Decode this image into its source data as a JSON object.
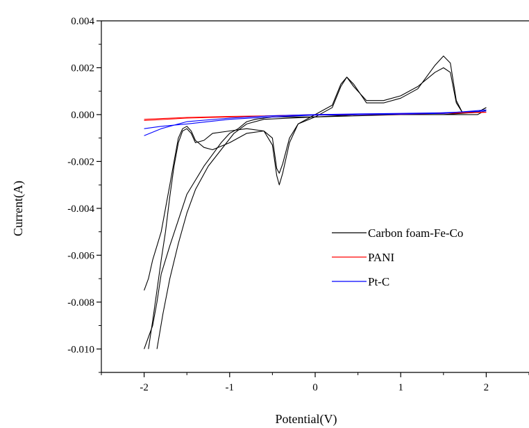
{
  "chart_data": {
    "type": "line",
    "title": "",
    "xlabel": "Potential(V)",
    "ylabel": "Current(A)",
    "xlim": [
      -2.5,
      2.5
    ],
    "ylim": [
      -0.011,
      0.004
    ],
    "x_ticks": [
      "-2",
      "-1",
      "0",
      "1",
      "2"
    ],
    "y_ticks": [
      "0.004",
      "0.002",
      "0.000",
      "-0.002",
      "-0.004",
      "-0.006",
      "-0.008",
      "-0.010"
    ],
    "grid": false,
    "legend_position": "center-right",
    "series": [
      {
        "name": "Carbon foam-Fe-Co",
        "color": "#000000",
        "curves": [
          [
            [
              -2.0,
              -0.0075
            ],
            [
              -1.95,
              -0.007
            ],
            [
              -1.9,
              -0.0062
            ],
            [
              -1.85,
              -0.0056
            ],
            [
              -1.8,
              -0.005
            ],
            [
              -1.75,
              -0.004
            ],
            [
              -1.7,
              -0.003
            ],
            [
              -1.65,
              -0.002
            ],
            [
              -1.6,
              -0.001
            ],
            [
              -1.55,
              -0.0006
            ],
            [
              -1.5,
              -0.0005
            ],
            [
              -1.45,
              -0.0007
            ],
            [
              -1.4,
              -0.0011
            ],
            [
              -1.3,
              -0.0014
            ],
            [
              -1.2,
              -0.0015
            ],
            [
              -1.0,
              -0.0012
            ],
            [
              -0.8,
              -0.0008
            ],
            [
              -0.6,
              -0.0007
            ],
            [
              -0.5,
              -0.001
            ],
            [
              -0.45,
              -0.0023
            ],
            [
              -0.42,
              -0.0025
            ],
            [
              -0.38,
              -0.0021
            ],
            [
              -0.3,
              -0.001
            ],
            [
              -0.2,
              -0.0004
            ],
            [
              0.0,
              -0.0001
            ],
            [
              0.2,
              0.0003
            ],
            [
              0.3,
              0.0012
            ],
            [
              0.37,
              0.0016
            ],
            [
              0.45,
              0.0012
            ],
            [
              0.6,
              0.0006
            ],
            [
              0.8,
              0.0006
            ],
            [
              1.0,
              0.0008
            ],
            [
              1.2,
              0.0012
            ],
            [
              1.4,
              0.0018
            ],
            [
              1.5,
              0.002
            ],
            [
              1.58,
              0.0018
            ],
            [
              1.65,
              0.0005
            ],
            [
              1.72,
              0.0001
            ],
            [
              1.9,
              0.0001
            ],
            [
              2.0,
              0.0003
            ]
          ],
          [
            [
              2.0,
              0.0002
            ],
            [
              1.9,
              0.0
            ],
            [
              1.7,
              0.0
            ],
            [
              1.5,
              0.0
            ],
            [
              1.0,
              0.0
            ],
            [
              0.5,
              -0.0
            ],
            [
              0.0,
              -0.0001
            ],
            [
              -0.5,
              -0.0001
            ],
            [
              -0.7,
              -0.0002
            ],
            [
              -0.8,
              -0.0003
            ],
            [
              -0.9,
              -0.0006
            ],
            [
              -1.0,
              -0.0008
            ],
            [
              -1.1,
              -0.0012
            ],
            [
              -1.2,
              -0.0017
            ],
            [
              -1.3,
              -0.0022
            ],
            [
              -1.4,
              -0.0028
            ],
            [
              -1.5,
              -0.0034
            ],
            [
              -1.6,
              -0.0045
            ],
            [
              -1.7,
              -0.0056
            ],
            [
              -1.8,
              -0.0068
            ],
            [
              -1.85,
              -0.008
            ],
            [
              -1.9,
              -0.009
            ],
            [
              -2.0,
              -0.01
            ]
          ],
          [
            [
              -1.95,
              -0.01
            ],
            [
              -1.9,
              -0.0088
            ],
            [
              -1.85,
              -0.0075
            ],
            [
              -1.8,
              -0.0062
            ],
            [
              -1.75,
              -0.005
            ],
            [
              -1.7,
              -0.0035
            ],
            [
              -1.65,
              -0.0022
            ],
            [
              -1.6,
              -0.0012
            ],
            [
              -1.55,
              -0.0007
            ],
            [
              -1.5,
              -0.0006
            ],
            [
              -1.45,
              -0.0008
            ],
            [
              -1.4,
              -0.0012
            ],
            [
              -1.3,
              -0.0011
            ],
            [
              -1.2,
              -0.0008
            ],
            [
              -1.0,
              -0.0007
            ],
            [
              -0.8,
              -0.0006
            ],
            [
              -0.6,
              -0.0007
            ],
            [
              -0.5,
              -0.0013
            ],
            [
              -0.45,
              -0.0026
            ],
            [
              -0.42,
              -0.003
            ],
            [
              -0.38,
              -0.0025
            ],
            [
              -0.3,
              -0.0012
            ],
            [
              -0.2,
              -0.0004
            ],
            [
              0.0,
              0.0
            ],
            [
              0.2,
              0.0004
            ],
            [
              0.3,
              0.0013
            ],
            [
              0.37,
              0.0016
            ],
            [
              0.45,
              0.0013
            ],
            [
              0.6,
              0.0005
            ],
            [
              0.8,
              0.0005
            ],
            [
              1.0,
              0.0007
            ],
            [
              1.2,
              0.0011
            ],
            [
              1.4,
              0.0021
            ],
            [
              1.5,
              0.0025
            ],
            [
              1.58,
              0.0022
            ],
            [
              1.65,
              0.0006
            ],
            [
              1.72,
              0.0001
            ],
            [
              1.9,
              0.0001
            ],
            [
              2.0,
              0.0003
            ]
          ],
          [
            [
              2.0,
              0.0003
            ],
            [
              1.9,
              0.0001
            ],
            [
              1.5,
              0.0
            ],
            [
              1.0,
              0.0
            ],
            [
              0.0,
              -0.0001
            ],
            [
              -0.6,
              -0.0002
            ],
            [
              -0.8,
              -0.0004
            ],
            [
              -0.95,
              -0.0008
            ],
            [
              -1.1,
              -0.0015
            ],
            [
              -1.25,
              -0.0022
            ],
            [
              -1.4,
              -0.0032
            ],
            [
              -1.5,
              -0.0042
            ],
            [
              -1.6,
              -0.0055
            ],
            [
              -1.7,
              -0.007
            ],
            [
              -1.78,
              -0.0085
            ],
            [
              -1.85,
              -0.01
            ]
          ]
        ]
      },
      {
        "name": "PANI",
        "color": "#ff0000",
        "curves": [
          [
            [
              -2.0,
              -0.00025
            ],
            [
              -1.5,
              -0.00015
            ],
            [
              -1.0,
              -0.0001
            ],
            [
              -0.5,
              -5e-05
            ],
            [
              0.0,
              0.0
            ],
            [
              0.5,
              2e-05
            ],
            [
              1.0,
              3e-05
            ],
            [
              1.5,
              5e-05
            ],
            [
              2.0,
              0.0001
            ]
          ],
          [
            [
              2.0,
              0.0001
            ],
            [
              1.0,
              1e-05
            ],
            [
              0.0,
              -2e-05
            ],
            [
              -1.0,
              -8e-05
            ],
            [
              -1.5,
              -0.00012
            ],
            [
              -2.0,
              -0.0002
            ]
          ]
        ]
      },
      {
        "name": "Pt-C",
        "color": "#0000ff",
        "curves": [
          [
            [
              -2.0,
              -0.0009
            ],
            [
              -1.8,
              -0.0006
            ],
            [
              -1.5,
              -0.0003
            ],
            [
              -1.0,
              -0.00015
            ],
            [
              -0.5,
              -5e-05
            ],
            [
              0.0,
              0.0
            ],
            [
              0.5,
              3e-05
            ],
            [
              1.0,
              5e-05
            ],
            [
              1.5,
              8e-05
            ],
            [
              2.0,
              0.00015
            ]
          ],
          [
            [
              2.0,
              0.0002
            ],
            [
              1.5,
              5e-05
            ],
            [
              1.0,
              2e-05
            ],
            [
              0.0,
              -2e-05
            ],
            [
              -0.5,
              -0.0001
            ],
            [
              -1.0,
              -0.0002
            ],
            [
              -1.5,
              -0.0004
            ],
            [
              -1.8,
              -0.0005
            ],
            [
              -2.0,
              -0.0006
            ]
          ]
        ]
      }
    ]
  }
}
